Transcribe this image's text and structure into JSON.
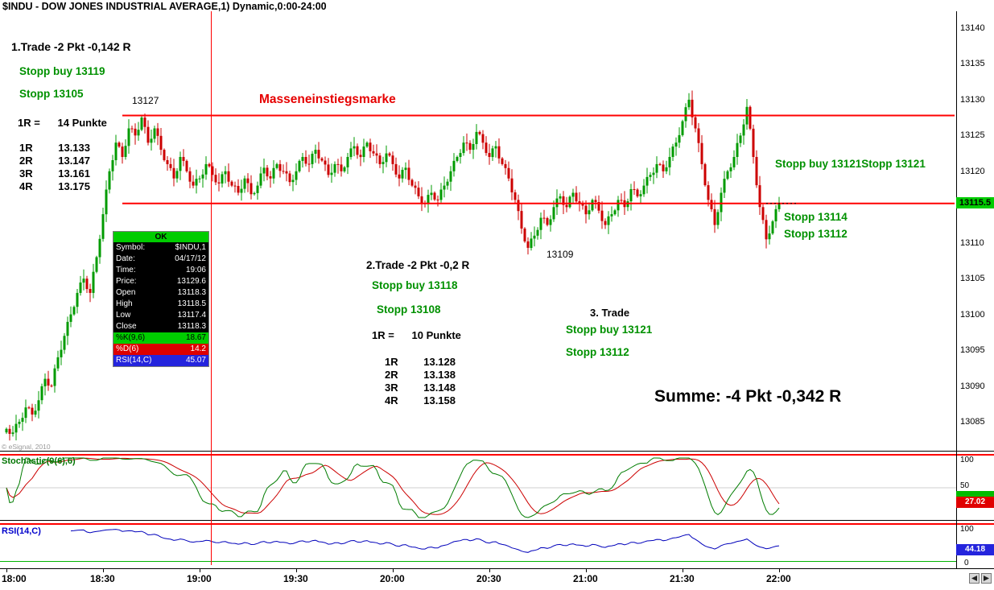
{
  "page": {
    "title": "$INDU - DOW JONES INDUSTRIAL AVERAGE,1) Dynamic,0:00-24:00",
    "copyright": "© eSignal, 2010"
  },
  "annotations": {
    "trade1": {
      "heading": "1.Trade -2 Pkt -0,142 R",
      "stopp_buy": "Stopp buy 13119",
      "stopp": "Stopp 13105",
      "r_line": "1R =      14 Punkte",
      "rows": [
        {
          "r": "1R",
          "v": "13.133"
        },
        {
          "r": "2R",
          "v": "13.147"
        },
        {
          "r": "3R",
          "v": "13.161"
        },
        {
          "r": "4R",
          "v": "13.175"
        }
      ]
    },
    "mass_entry": "Masseneinstiegsmarke",
    "high_label": "13127",
    "low_label": "13109",
    "trade2": {
      "heading": "2.Trade -2 Pkt -0,2 R",
      "stopp_buy": "Stopp buy 13118",
      "stopp": "Stopp 13108",
      "r_line": "1R =      10 Punkte",
      "rows": [
        {
          "r": "1R",
          "v": "13.128"
        },
        {
          "r": "2R",
          "v": "13.138"
        },
        {
          "r": "3R",
          "v": "13.148"
        },
        {
          "r": "4R",
          "v": "13.158"
        }
      ]
    },
    "trade3": {
      "heading": "3. Trade",
      "stopp_buy": "Stopp buy 13121",
      "stopp": "Stopp 13112"
    },
    "right_stops": {
      "stopp_buy": "Stopp buy 13121",
      "stopp": "Stopp 13121",
      "stopp2": "Stopp 13114",
      "stopp3": "Stopp 13112"
    },
    "summe": "Summe: -4 Pkt -0,342 R"
  },
  "data_window": {
    "header": "OK",
    "rows": [
      {
        "label": "Symbol:",
        "value": "$INDU,1"
      },
      {
        "label": "Date:",
        "value": "04/17/12"
      },
      {
        "label": "Time:",
        "value": "19:06"
      },
      {
        "label": "Price:",
        "value": "13129.6"
      },
      {
        "label": "Open",
        "value": "13118.3"
      },
      {
        "label": "High",
        "value": "13118.5"
      },
      {
        "label": "Low",
        "value": "13117.4"
      },
      {
        "label": "Close",
        "value": "13118.3"
      }
    ],
    "k_row": {
      "label": "%K(9,6)",
      "value": "18.67"
    },
    "d_row": {
      "label": "%D(6)",
      "value": "14.2"
    },
    "rsi_row": {
      "label": "RSI(14,C)",
      "value": "45.07"
    }
  },
  "chart_data": {
    "type": "candlestick",
    "symbol": "$INDU",
    "title": "DOW JONES INDUSTRIAL AVERAGE, 1-minute",
    "x_start": "18:00",
    "x_end": "22:00",
    "interval_minutes": 2,
    "x_ticks": [
      "18:00",
      "18:30",
      "19:00",
      "19:30",
      "20:00",
      "20:30",
      "21:00",
      "21:30",
      "22:00"
    ],
    "y_ticks": [
      13140,
      13135,
      13130,
      13125,
      13120,
      13110,
      13105,
      13100,
      13095,
      13090,
      13085
    ],
    "y_range": [
      13081,
      13141
    ],
    "levels": [
      13127.8,
      13115.5
    ],
    "last_price": "13115.5",
    "crosshair_time": "19:06",
    "closes": [
      13084,
      13083.5,
      13085,
      13087,
      13086,
      13088,
      13091,
      13090,
      13094,
      13097,
      13100,
      13103,
      13105,
      13103,
      13108,
      13114,
      13120,
      13124,
      13122,
      13126,
      13125,
      13127.5,
      13124,
      13126,
      13123,
      13121,
      13119,
      13122,
      13120,
      13118,
      13119,
      13121,
      13119.5,
      13118.3,
      13120,
      13118,
      13117,
      13119,
      13116.8,
      13118,
      13120.5,
      13119,
      13121,
      13120,
      13118.5,
      13120,
      13122,
      13121,
      13123,
      13121.5,
      13119.5,
      13121,
      13120,
      13122,
      13123.5,
      13122,
      13124,
      13122.5,
      13121,
      13122.5,
      13121,
      13119,
      13120.5,
      13118,
      13116.5,
      13115.5,
      13117,
      13116,
      13118,
      13120,
      13122,
      13124,
      13123,
      13125.5,
      13124,
      13122,
      13123.5,
      13121,
      13119,
      13116,
      13112,
      13109.3,
      13111,
      13113.5,
      13112.5,
      13115,
      13116.5,
      13115,
      13117,
      13115.5,
      13114,
      13116,
      13114.5,
      13112.5,
      13114,
      13116,
      13115,
      13117.5,
      13116.5,
      13118,
      13119.5,
      13121,
      13120,
      13122,
      13124,
      13127,
      13130,
      13126,
      13121,
      13116,
      13112.5,
      13117,
      13120,
      13122,
      13125,
      13129,
      13122,
      13115,
      13110.5,
      13113,
      13115.5
    ],
    "stochastic": {
      "label": "Stochastic(9(6),6)",
      "k_period": 9,
      "d_period": 6,
      "ticks": [
        "100",
        "50"
      ],
      "last_value": "27.02"
    },
    "rsi": {
      "label": "RSI(14,C)",
      "period": 14,
      "ticks": [
        "100",
        "0"
      ],
      "last_value": "44.18"
    }
  }
}
